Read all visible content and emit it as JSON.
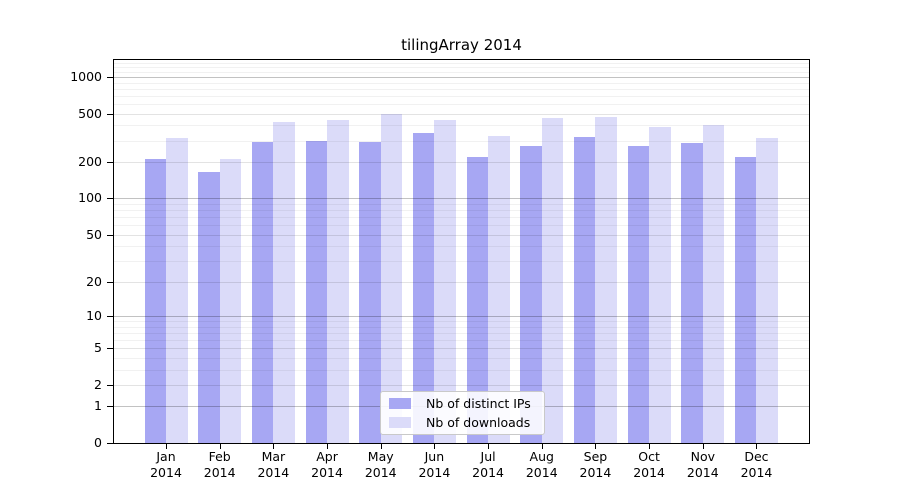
{
  "title": "tilingArray 2014",
  "legend": {
    "items": [
      {
        "label": "Nb of distinct IPs",
        "color": "#a7a7f3"
      },
      {
        "label": "Nb of downloads",
        "color": "#dbdbf9"
      }
    ]
  },
  "y_axis": {
    "tick_labels": [
      "0",
      "1",
      "2",
      "5",
      "10",
      "20",
      "50",
      "100",
      "200",
      "500",
      "1000"
    ]
  },
  "x_axis": {
    "year": "2014",
    "months": [
      "Jan",
      "Feb",
      "Mar",
      "Apr",
      "May",
      "Jun",
      "Jul",
      "Aug",
      "Sep",
      "Oct",
      "Nov",
      "Dec"
    ]
  },
  "chart_data": {
    "type": "bar",
    "title": "tilingArray 2014",
    "categories": [
      "Jan 2014",
      "Feb 2014",
      "Mar 2014",
      "Apr 2014",
      "May 2014",
      "Jun 2014",
      "Jul 2014",
      "Aug 2014",
      "Sep 2014",
      "Oct 2014",
      "Nov 2014",
      "Dec 2014"
    ],
    "series": [
      {
        "name": "Nb of distinct IPs",
        "color": "#a7a7f3",
        "values": [
          210,
          165,
          295,
          300,
          295,
          345,
          220,
          270,
          320,
          270,
          285,
          220
        ]
      },
      {
        "name": "Nb of downloads",
        "color": "#dbdbf9",
        "values": [
          315,
          210,
          430,
          445,
          500,
          440,
          325,
          460,
          470,
          390,
          405,
          315
        ]
      }
    ],
    "y_scale": "log1p",
    "y_ticks": [
      0,
      1,
      2,
      5,
      10,
      20,
      50,
      100,
      200,
      500,
      1000
    ],
    "y_minor_gridlines": [
      3,
      4,
      6,
      7,
      8,
      9,
      30,
      40,
      60,
      70,
      80,
      90,
      300,
      400,
      600,
      700,
      800,
      900,
      1100,
      1200,
      1300,
      1400
    ],
    "ylim": [
      0,
      1400
    ],
    "grid": "both",
    "legend_position": "lower-center-inside"
  }
}
